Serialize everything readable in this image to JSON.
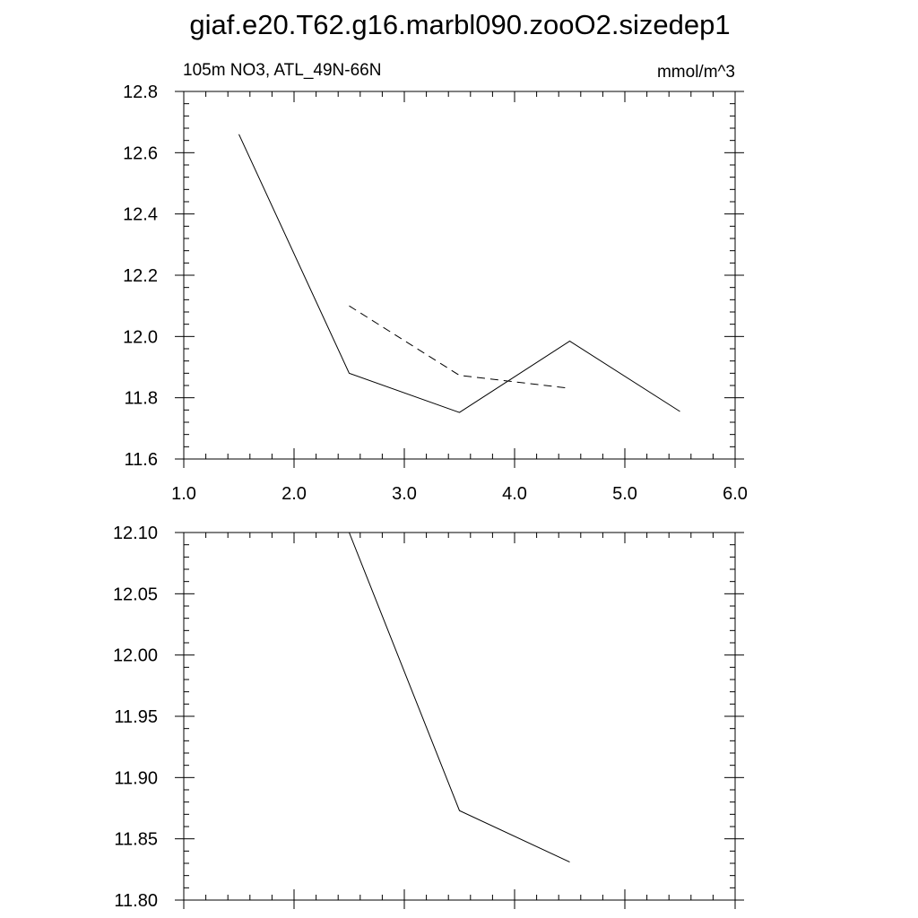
{
  "title": "giaf.e20.T62.g16.marbl090.zooO2.sizedep1",
  "chart_data": [
    {
      "type": "line",
      "left_label": "105m NO3, ATL_49N-66N",
      "right_label": "mmol/m^3",
      "xlim": [
        1.0,
        6.0
      ],
      "ylim": [
        11.6,
        12.8
      ],
      "x_ticks": [
        "1.0",
        "2.0",
        "3.0",
        "4.0",
        "5.0",
        "6.0"
      ],
      "y_ticks": [
        "11.6",
        "11.8",
        "12.0",
        "12.2",
        "12.4",
        "12.6",
        "12.8"
      ],
      "series": [
        {
          "style": "solid",
          "x": [
            1.5,
            2.5,
            3.5,
            4.5,
            5.5
          ],
          "y": [
            12.66,
            11.88,
            11.752,
            11.985,
            11.755
          ]
        },
        {
          "style": "dashed",
          "x": [
            2.5,
            3.5,
            4.5
          ],
          "y": [
            12.1,
            11.873,
            11.831
          ]
        }
      ]
    },
    {
      "type": "line",
      "xlim": [
        1.0,
        6.0
      ],
      "ylim": [
        11.8,
        12.1
      ],
      "y_ticks": [
        "11.80",
        "11.85",
        "11.90",
        "11.95",
        "12.00",
        "12.05",
        "12.10"
      ],
      "series": [
        {
          "style": "solid",
          "x": [
            2.5,
            3.5,
            4.5
          ],
          "y": [
            12.1,
            11.873,
            11.831
          ]
        }
      ]
    }
  ]
}
